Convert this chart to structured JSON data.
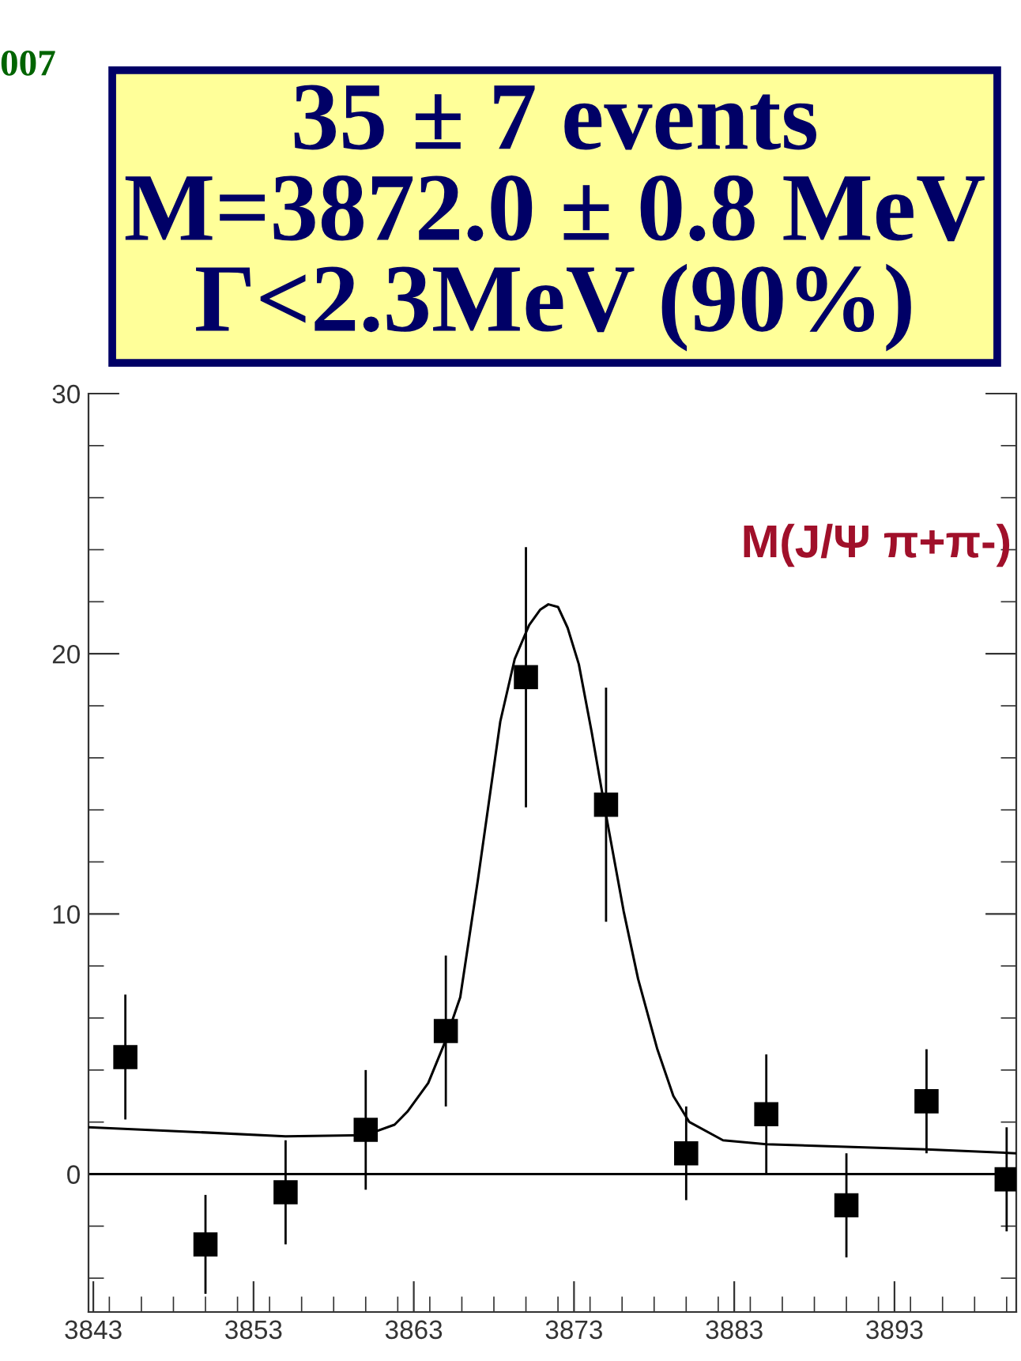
{
  "chart_data": {
    "type": "scatter",
    "annotations": [
      "007",
      "35 ± 7 events\nM=3872.0 ± 0.8 MeV\nΓ<2.3MeV (90%)",
      "M(J/Ψ π+π-)"
    ],
    "x": [
      3845,
      3850,
      3855,
      3860,
      3865,
      3870,
      3875,
      3880,
      3885,
      3890,
      3895,
      3900
    ],
    "series": [
      {
        "color": "#000000",
        "marker": "square",
        "values": [
          4.5,
          -2.7,
          -0.7,
          1.7,
          5.5,
          19.1,
          14.2,
          0.8,
          2.3,
          -1.2,
          2.8,
          -0.2
        ],
        "errors": [
          2.4,
          1.9,
          2.0,
          2.3,
          2.9,
          5.0,
          4.5,
          1.8,
          2.3,
          2.0,
          2.0,
          2.0
        ]
      },
      {
        "type": "line",
        "color": "#000000",
        "line_style": "solid",
        "marker": "none",
        "x": [
          3842.7,
          3850,
          3855,
          3860,
          3861.8,
          3862.6,
          3863.9,
          3864.9,
          3865.9,
          3867,
          3868.4,
          3869.3,
          3870.2,
          3870.9,
          3871.4,
          3872,
          3872.6,
          3873.3,
          3874.1,
          3875,
          3876.1,
          3877,
          3878.2,
          3879.2,
          3880.2,
          3882.3,
          3885,
          3890,
          3895,
          3900.6
        ],
        "values": [
          1.8,
          1.6,
          1.45,
          1.5,
          1.9,
          2.4,
          3.5,
          5.0,
          6.8,
          11.3,
          17.4,
          19.8,
          21.1,
          21.7,
          21.9,
          21.8,
          21.0,
          19.6,
          17.0,
          13.8,
          10.1,
          7.5,
          4.8,
          3.0,
          2.0,
          1.3,
          1.15,
          1.05,
          0.95,
          0.8
        ]
      }
    ],
    "xlim": [
      3842.7,
      3900.6
    ],
    "xticks": [
      3843,
      3853,
      3863,
      3873,
      3883,
      3893
    ],
    "ylim": [
      -5.3,
      30
    ],
    "yticks": [
      0,
      10,
      20,
      30
    ],
    "ref_lines": [
      {
        "axis": "y",
        "value": 0,
        "color": "#000000"
      }
    ],
    "grid": false,
    "legend": false
  }
}
